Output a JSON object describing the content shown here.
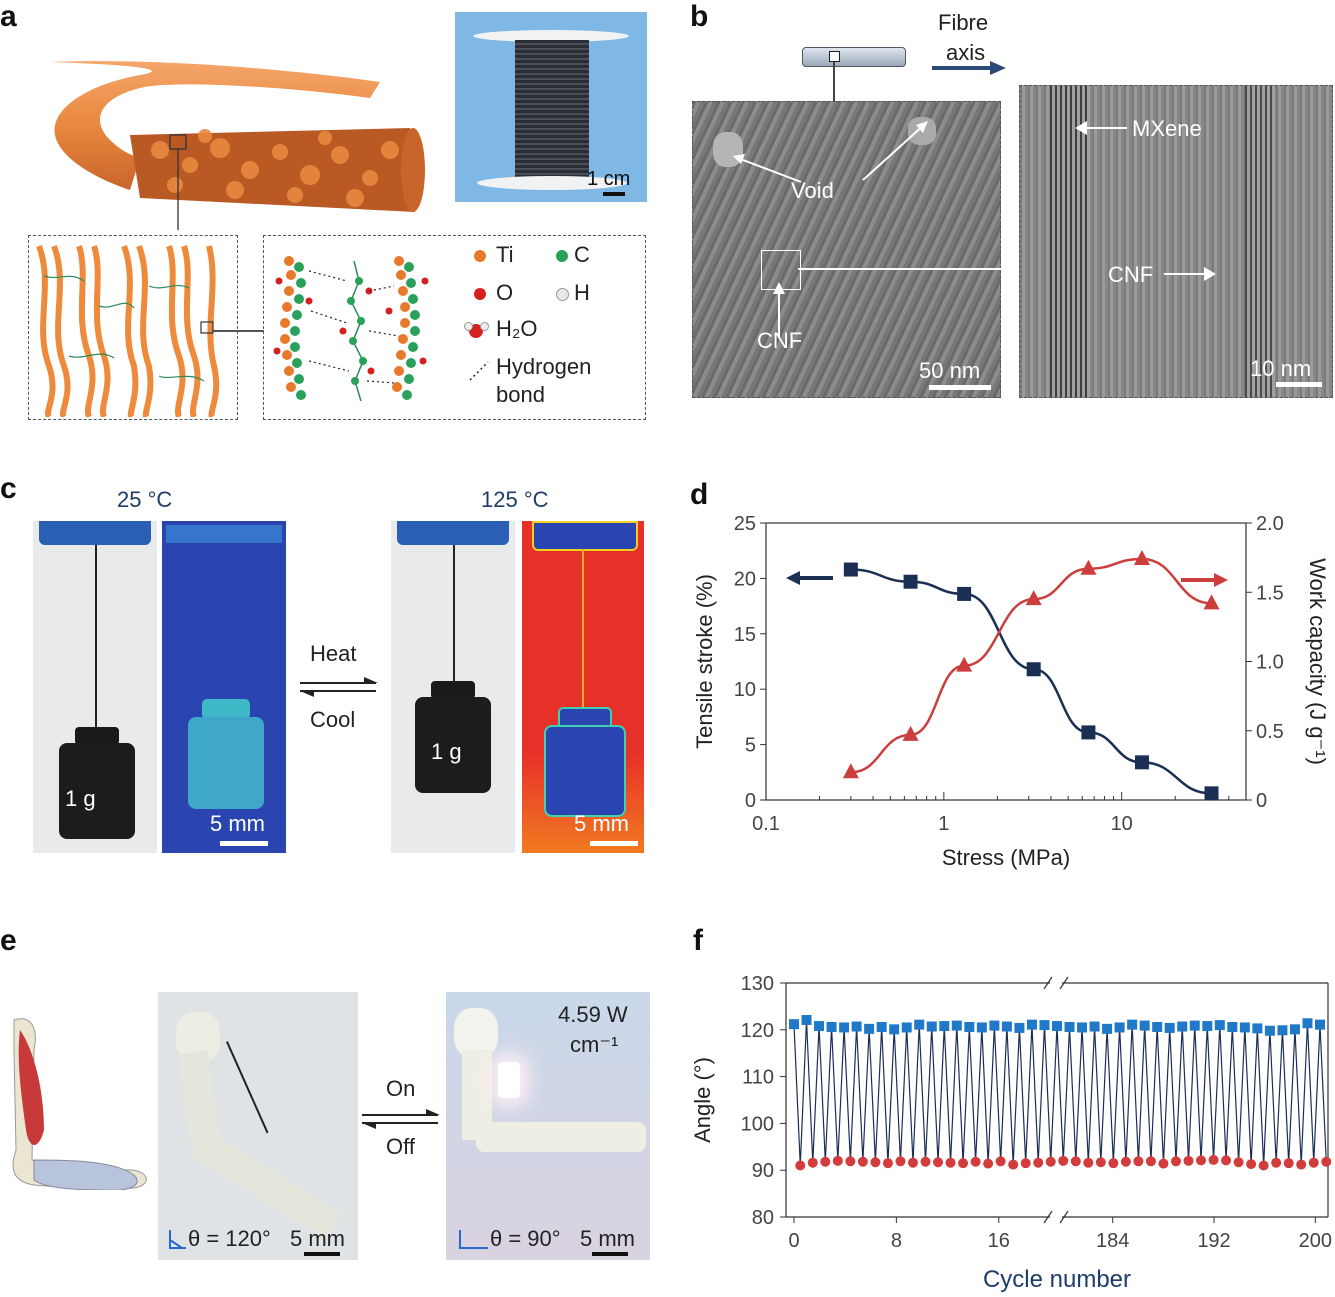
{
  "panels": {
    "a": "a",
    "b": "b",
    "c": "c",
    "d": "d",
    "e": "e",
    "f": "f"
  },
  "a": {
    "scale": "1 cm",
    "legend": {
      "ti": "Ti",
      "c": "C",
      "o": "O",
      "h": "H",
      "water": "H₂O",
      "hbond_1": "Hydrogen",
      "hbond_2": "bond"
    },
    "colors": {
      "ti": "#e8782a",
      "c": "#2aa05a",
      "o": "#d62020",
      "h": "#e8e8e8",
      "fibre": "#e9883f"
    }
  },
  "b": {
    "axis_1": "Fibre",
    "axis_2": "axis",
    "void": "Void",
    "cnf": "CNF",
    "mxene": "MXene",
    "cnf2": "CNF",
    "scale_left": "50 nm",
    "scale_right": "10 nm"
  },
  "c": {
    "temp_low": "25 °C",
    "temp_high": "125 °C",
    "heat": "Heat",
    "cool": "Cool",
    "weight_left": "1 g",
    "weight_right": "1 g",
    "scale_left": "5 mm",
    "scale_right": "5 mm"
  },
  "e": {
    "on": "On",
    "off": "Off",
    "power_1": "4.59 W",
    "power_2": "cm⁻¹",
    "theta_left": "θ = 120°",
    "theta_right": "θ = 90°",
    "scale_left": "5 mm",
    "scale_right": "5 mm"
  },
  "chart_data": [
    {
      "panel": "d",
      "type": "line",
      "xscale": "log",
      "xlabel": "Stress (MPa)",
      "ylabel_left": "Tensile stroke (%)",
      "ylabel_right": "Work capacity (J g⁻¹)",
      "xticks": [
        "0.1",
        "1",
        "10"
      ],
      "yticks_left": [
        "0",
        "5",
        "10",
        "15",
        "20",
        "25"
      ],
      "yticks_right": [
        "0",
        "0.5",
        "1.0",
        "1.5",
        "2.0"
      ],
      "ylim_left": [
        0,
        25
      ],
      "ylim_right": [
        0,
        2.0
      ],
      "xlim": [
        0.1,
        50
      ],
      "series": [
        {
          "axis": "left",
          "color": "#1b2f55",
          "marker": "square",
          "x": [
            0.3,
            0.65,
            1.3,
            3.2,
            6.5,
            13,
            32
          ],
          "y": [
            20.8,
            19.7,
            18.6,
            11.8,
            6.1,
            3.4,
            0.6
          ]
        },
        {
          "axis": "right",
          "color": "#cc3d3d",
          "marker": "triangle",
          "x": [
            0.3,
            0.65,
            1.3,
            3.2,
            6.5,
            13,
            32
          ],
          "y": [
            0.2,
            0.47,
            0.97,
            1.45,
            1.67,
            1.74,
            1.42
          ]
        }
      ]
    },
    {
      "panel": "f",
      "type": "line",
      "xlabel": "Cycle number",
      "ylabel": "Angle (°)",
      "yticks": [
        "80",
        "90",
        "100",
        "110",
        "120",
        "130"
      ],
      "ylim": [
        80,
        130
      ],
      "xticks": [
        "0",
        "8",
        "16",
        "184",
        "192",
        "200"
      ],
      "segments": [
        [
          0,
          20
        ],
        [
          180,
          201
        ]
      ],
      "colors": {
        "high": "#1f78c8",
        "low": "#d23c3c",
        "line": "#1b2f55"
      },
      "high": [
        121.2,
        122.1,
        120.8,
        120.6,
        120.5,
        120.7,
        120.2,
        120.6,
        120.1,
        120.5,
        121.1,
        120.7,
        120.8,
        120.9,
        120.6,
        120.5,
        120.9,
        120.7,
        120.4,
        121.1,
        121.0,
        120.8,
        120.6,
        120.5,
        120.7,
        120.2,
        120.5,
        121.1,
        120.9,
        120.6,
        120.4,
        120.7,
        120.9,
        120.8,
        121.0,
        120.6,
        120.5,
        120.3,
        119.8,
        119.9,
        120.1,
        121.4,
        121.1
      ],
      "low": [
        91.0,
        91.6,
        91.8,
        92.0,
        91.9,
        91.8,
        91.7,
        91.5,
        91.9,
        91.6,
        91.8,
        91.7,
        91.6,
        91.5,
        91.8,
        91.4,
        91.9,
        91.2,
        91.5,
        91.6,
        91.8,
        92.0,
        91.9,
        91.6,
        91.7,
        91.5,
        91.8,
        91.9,
        91.9,
        91.4,
        91.9,
        92.0,
        92.1,
        92.2,
        92.1,
        91.7,
        91.3,
        91.0,
        91.6,
        91.5,
        91.2,
        91.6,
        91.8
      ]
    }
  ]
}
